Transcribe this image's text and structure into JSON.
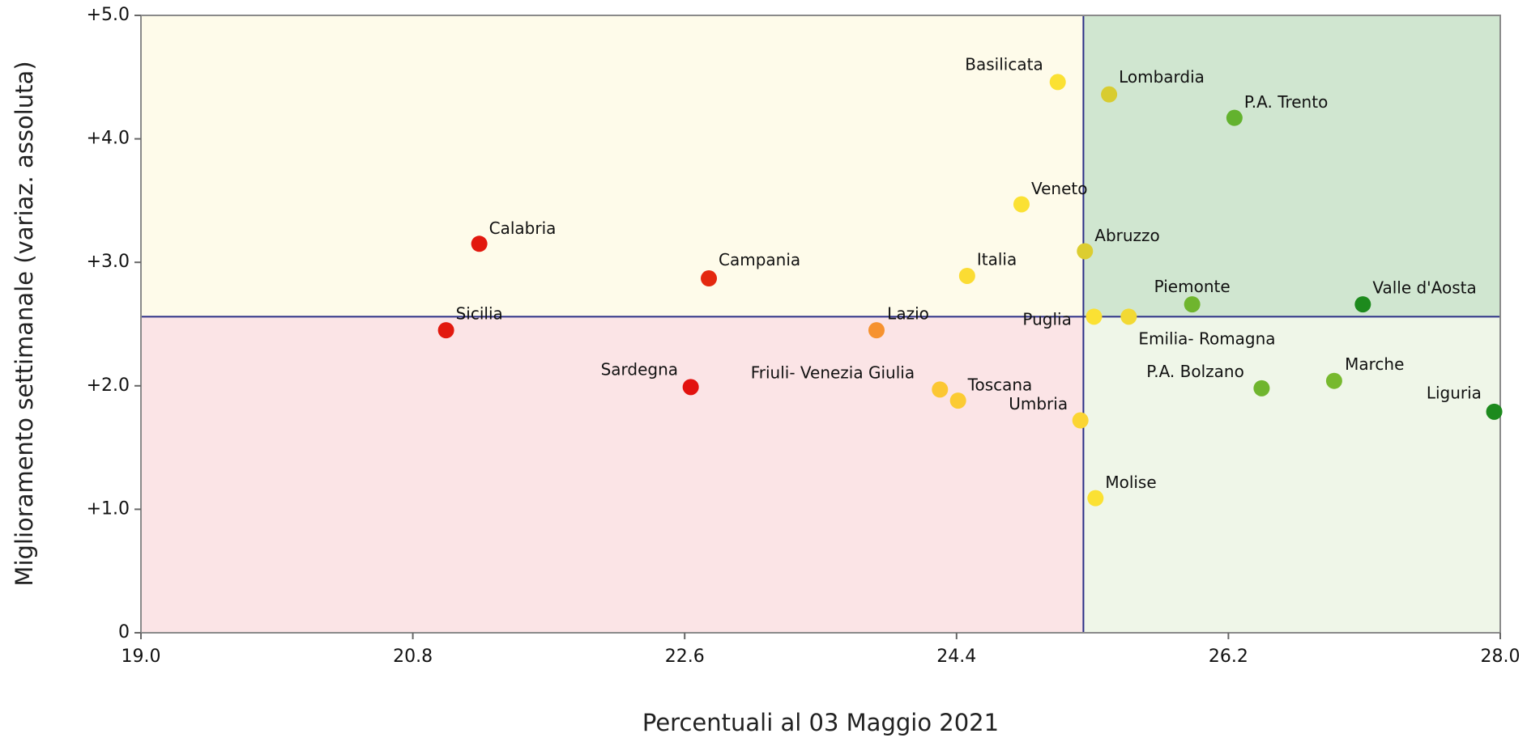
{
  "chart_data": {
    "type": "scatter",
    "x_label": "Percentuali al 03 Maggio 2021",
    "y_label": "Miglioramento settimanale (variaz. assoluta)",
    "xlim": [
      19.0,
      28.0
    ],
    "xticks": [
      {
        "value": 19.0,
        "label": "19.0"
      },
      20.8,
      22.6,
      24.4,
      26.2,
      {
        "value": 28.0,
        "label": "28.0"
      }
    ],
    "ylim": [
      0,
      5.0
    ],
    "yticks": [
      0,
      {
        "value": 1.0,
        "label": "+1.0"
      },
      {
        "value": 2.0,
        "label": "+2.0"
      },
      {
        "value": 3.0,
        "label": "+3.0"
      },
      {
        "value": 4.0,
        "label": "+4.0"
      },
      {
        "value": 5.0,
        "label": "+5.0"
      }
    ],
    "reference_x": 25.24,
    "reference_y": 2.56,
    "quadrant_colors": {
      "top_left": "#fefbea",
      "top_right": "#d0e6d0",
      "bottom_left": "#fbe4e6",
      "bottom_right": "#eff6e8"
    },
    "reference_line_color": "#2b2f86",
    "points": [
      {
        "label": "Basilicata",
        "x": 25.07,
        "y": 4.46,
        "color": "#fbe133"
      },
      {
        "label": "Lombardia",
        "x": 25.41,
        "y": 4.36,
        "color": "#d8cc30"
      },
      {
        "label": "P.A. Trento",
        "x": 26.24,
        "y": 4.17,
        "color": "#63b22e"
      },
      {
        "label": "Veneto",
        "x": 24.83,
        "y": 3.47,
        "color": "#fbe133"
      },
      {
        "label": "Abruzzo",
        "x": 25.25,
        "y": 3.09,
        "color": "#dccd30"
      },
      {
        "label": "Calabria",
        "x": 21.24,
        "y": 3.15,
        "color": "#e2190f"
      },
      {
        "label": "Campania",
        "x": 22.76,
        "y": 2.87,
        "color": "#e4280f"
      },
      {
        "label": "Italia",
        "x": 24.47,
        "y": 2.89,
        "color": "#fbdc33"
      },
      {
        "label": "Piemonte",
        "x": 25.96,
        "y": 2.66,
        "color": "#6fb52e"
      },
      {
        "label": "Valle d'Aosta",
        "x": 27.09,
        "y": 2.66,
        "color": "#1d8a1d"
      },
      {
        "label": "Puglia",
        "x": 25.31,
        "y": 2.56,
        "color": "#fbe133"
      },
      {
        "label": "Emilia- Romagna",
        "x": 25.54,
        "y": 2.56,
        "color": "#f2d933"
      },
      {
        "label": "Sicilia",
        "x": 21.02,
        "y": 2.45,
        "color": "#e2190f"
      },
      {
        "label": "Lazio",
        "x": 23.87,
        "y": 2.45,
        "color": "#f6922f"
      },
      {
        "label": "Sardegna",
        "x": 22.64,
        "y": 1.99,
        "color": "#e2120f"
      },
      {
        "label": "Friuli- Venezia Giulia",
        "x": 24.29,
        "y": 1.97,
        "color": "#fbc733"
      },
      {
        "label": "Toscana",
        "x": 24.41,
        "y": 1.88,
        "color": "#fbcb33"
      },
      {
        "label": "Umbria",
        "x": 25.22,
        "y": 1.72,
        "color": "#fbd533"
      },
      {
        "label": "P.A. Bolzano",
        "x": 26.42,
        "y": 1.98,
        "color": "#6fb52e"
      },
      {
        "label": "Marche",
        "x": 26.9,
        "y": 2.04,
        "color": "#77b92e"
      },
      {
        "label": "Liguria",
        "x": 27.96,
        "y": 1.79,
        "color": "#1d8a1d"
      },
      {
        "label": "Molise",
        "x": 25.32,
        "y": 1.09,
        "color": "#fbe133"
      }
    ]
  }
}
